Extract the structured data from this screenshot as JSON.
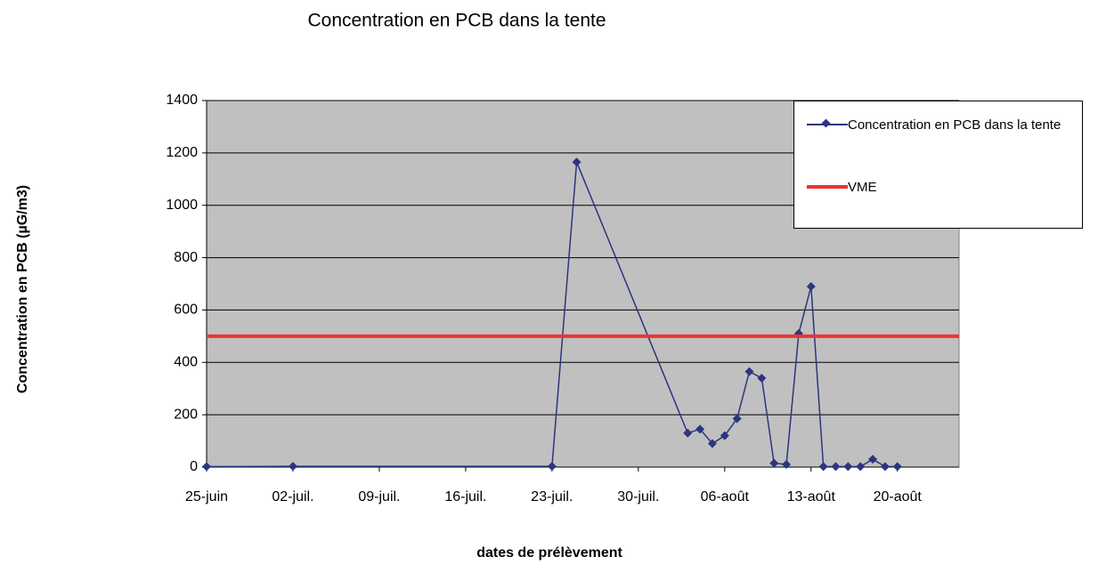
{
  "chart_data": {
    "type": "line",
    "title": "Concentration en PCB dans la tente",
    "xlabel": "dates de prélèvement",
    "ylabel": "Concentration en PCB (µG/m3)",
    "xlim": [
      "06-25",
      "08-25"
    ],
    "xticks": [
      {
        "value": "06-25",
        "label": "25-juin"
      },
      {
        "value": "07-02",
        "label": "02-juil."
      },
      {
        "value": "07-09",
        "label": "09-juil."
      },
      {
        "value": "07-16",
        "label": "16-juil."
      },
      {
        "value": "07-23",
        "label": "23-juil."
      },
      {
        "value": "07-30",
        "label": "30-juil."
      },
      {
        "value": "08-06",
        "label": "06-août"
      },
      {
        "value": "08-13",
        "label": "13-août"
      },
      {
        "value": "08-20",
        "label": "20-août"
      }
    ],
    "ylim": [
      0,
      1400
    ],
    "yticks": [
      0,
      200,
      400,
      600,
      800,
      1000,
      1200,
      1400
    ],
    "grid": true,
    "legend": "upper right",
    "series": [
      {
        "name": "Concentration en PCB dans la tente",
        "color": "#2b3580",
        "marker": "diamond",
        "x": [
          "06-25",
          "07-02",
          "07-23",
          "07-25",
          "08-03",
          "08-04",
          "08-05",
          "08-06",
          "08-07",
          "08-08",
          "08-09",
          "08-10",
          "08-11",
          "08-12",
          "08-13",
          "08-14",
          "08-15",
          "08-16",
          "08-17",
          "08-18",
          "08-19",
          "08-20"
        ],
        "values": [
          2,
          3,
          3,
          1165,
          130,
          145,
          90,
          120,
          185,
          365,
          340,
          15,
          10,
          510,
          690,
          2,
          2,
          2,
          2,
          30,
          2,
          2
        ]
      },
      {
        "name": "VME",
        "color": "#ee3333",
        "marker": "none",
        "x": [
          "06-25",
          "08-25"
        ],
        "values": [
          500,
          500
        ]
      }
    ]
  }
}
